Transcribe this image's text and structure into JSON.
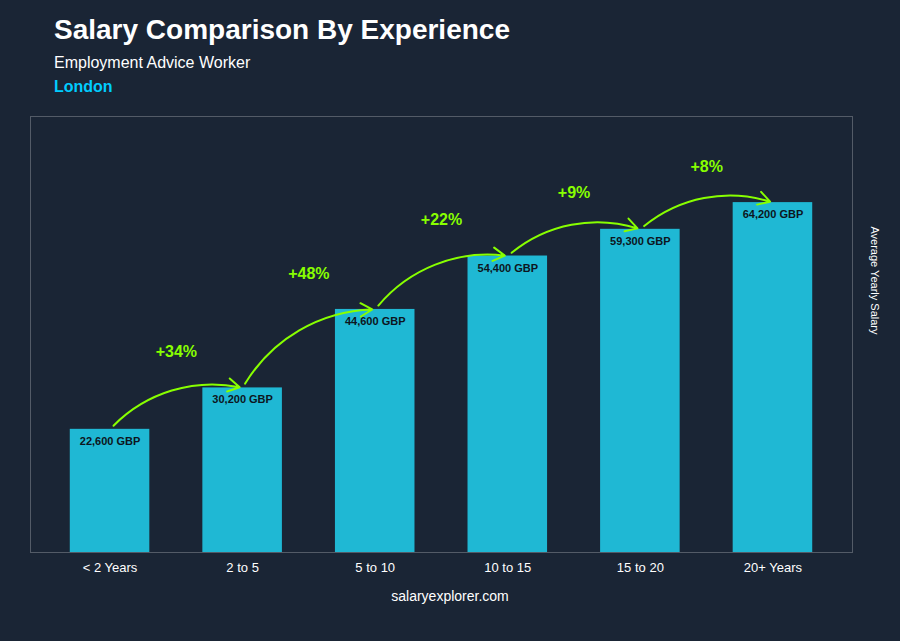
{
  "chart_data": {
    "type": "bar",
    "title": "Salary Comparison By Experience",
    "subtitle": "Employment Advice Worker",
    "categories": [
      "< 2 Years",
      "2 to 5",
      "5 to 10",
      "10 to 15",
      "15 to 20",
      "20+ Years"
    ],
    "values": [
      22600,
      30200,
      44600,
      54400,
      59300,
      64200
    ],
    "value_labels": [
      "22,600 GBP",
      "30,200 GBP",
      "44,600 GBP",
      "54,400 GBP",
      "59,300 GBP",
      "64,200 GBP"
    ],
    "data_labels": true,
    "color": "#1FB8D4",
    "ylim": [
      0,
      80000
    ],
    "y_label": "Average Yearly Salary",
    "tick_labels": "x",
    "grid": false,
    "caption": "salaryexplorer.com",
    "annotations": [
      {
        "text": "London",
        "color": "#00CCFF"
      },
      {
        "text": "+34%",
        "from": "< 2 Years",
        "to": "2 to 5",
        "color": "#88FF00"
      },
      {
        "text": "+48%",
        "from": "2 to 5",
        "to": "5 to 10",
        "color": "#88FF00"
      },
      {
        "text": "+22%",
        "from": "5 to 10",
        "to": "10 to 15",
        "color": "#88FF00"
      },
      {
        "text": "+9%",
        "from": "10 to 15",
        "to": "15 to 20",
        "color": "#88FF00"
      },
      {
        "text": "+8%",
        "from": "15 to 20",
        "to": "20+ Years",
        "color": "#88FF00"
      }
    ]
  }
}
